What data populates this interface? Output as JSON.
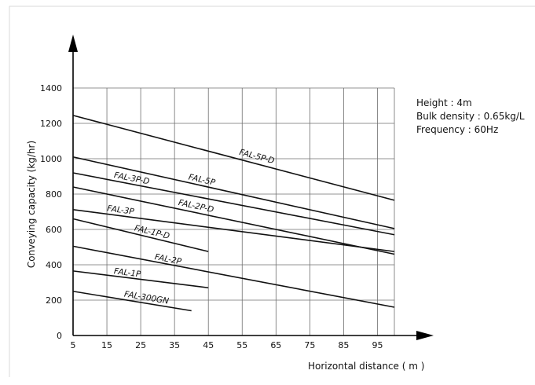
{
  "chart_data": {
    "type": "line",
    "title": "",
    "xlabel": "Horizontal distance ( m )",
    "ylabel": "Conveying capacity (kg/hr)",
    "xlim": [
      5,
      100
    ],
    "ylim": [
      0,
      1400
    ],
    "x_ticks": [
      5,
      15,
      25,
      35,
      45,
      55,
      65,
      75,
      85,
      95
    ],
    "y_ticks": [
      0,
      200,
      400,
      600,
      800,
      1000,
      1200,
      1400
    ],
    "grid": true,
    "legend": "none",
    "annotations": [
      "Height : 4m",
      "Bulk density : 0.65kg/L",
      "Frequency : 60Hz"
    ],
    "series": [
      {
        "name": "FAL-5P-D",
        "x": [
          5,
          100
        ],
        "y": [
          1245,
          765
        ]
      },
      {
        "name": "FAL-5P",
        "x": [
          5,
          100
        ],
        "y": [
          1010,
          605
        ]
      },
      {
        "name": "FAL-3P-D",
        "x": [
          5,
          100
        ],
        "y": [
          920,
          570
        ]
      },
      {
        "name": "FAL-2P-D",
        "x": [
          5,
          100
        ],
        "y": [
          840,
          460
        ]
      },
      {
        "name": "FAL-3P",
        "x": [
          5,
          100
        ],
        "y": [
          712,
          475
        ]
      },
      {
        "name": "FAL-1P-D",
        "x": [
          5,
          45
        ],
        "y": [
          660,
          475
        ]
      },
      {
        "name": "FAL-2P",
        "x": [
          5,
          100
        ],
        "y": [
          505,
          160
        ]
      },
      {
        "name": "FAL-1P",
        "x": [
          5,
          45
        ],
        "y": [
          365,
          270
        ]
      },
      {
        "name": "FAL-300GN",
        "x": [
          5,
          40
        ],
        "y": [
          250,
          140
        ]
      }
    ]
  }
}
